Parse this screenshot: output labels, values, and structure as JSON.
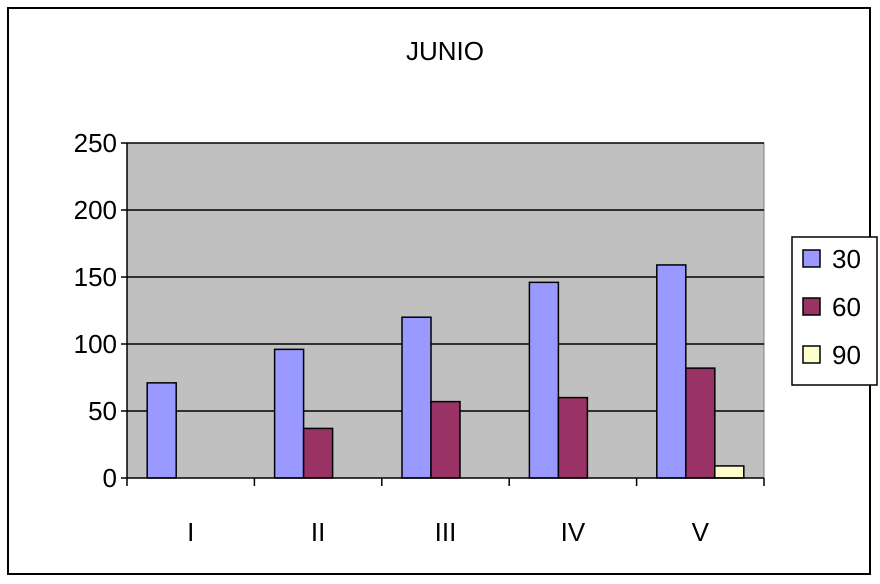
{
  "chart_data": {
    "type": "bar",
    "title": "JUNIO",
    "xlabel": "",
    "ylabel": "",
    "categories": [
      "I",
      "II",
      "III",
      "IV",
      "V"
    ],
    "series": [
      {
        "name": "30",
        "values": [
          71,
          96,
          120,
          146,
          159
        ],
        "color": "#9999ff"
      },
      {
        "name": "60",
        "values": [
          0,
          37,
          57,
          60,
          82
        ],
        "color": "#993366"
      },
      {
        "name": "90",
        "values": [
          0,
          0,
          0,
          0,
          9
        ],
        "color": "#ffffcc"
      }
    ],
    "ylim": [
      0,
      250
    ],
    "yticks": [
      0,
      50,
      100,
      150,
      200,
      250
    ],
    "grid": true,
    "legend_position": "right",
    "plot_background": "#c0c0c0"
  }
}
